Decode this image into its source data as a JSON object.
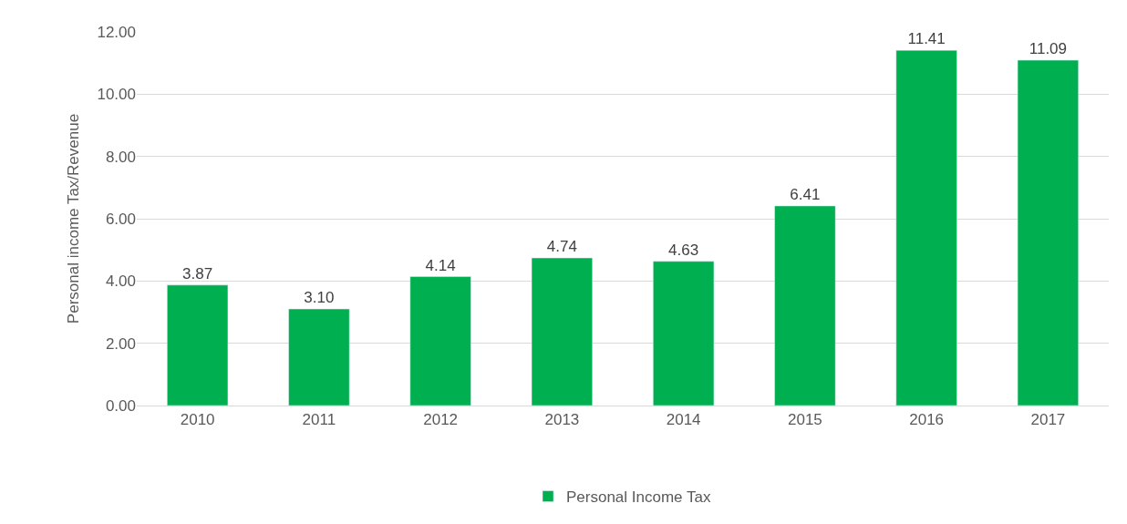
{
  "chart_data": {
    "type": "bar",
    "ylabel": "Personal income Tax/Revenue",
    "categories": [
      "2010",
      "2011",
      "2012",
      "2013",
      "2014",
      "2015",
      "2016",
      "2017"
    ],
    "series": [
      {
        "name": "Personal Income Tax",
        "color": "#00b050",
        "values": [
          3.87,
          3.1,
          4.14,
          4.74,
          4.63,
          6.41,
          11.41,
          11.09
        ],
        "value_labels": [
          "3.87",
          "3.10",
          "4.14",
          "4.74",
          "4.63",
          "6.41",
          "11.41",
          "11.09"
        ]
      }
    ],
    "ylim": [
      0,
      12
    ],
    "yticks": [
      {
        "value": 0,
        "label": "0.00"
      },
      {
        "value": 2,
        "label": "2.00"
      },
      {
        "value": 4,
        "label": "4.00"
      },
      {
        "value": 6,
        "label": "6.00"
      },
      {
        "value": 8,
        "label": "8.00"
      },
      {
        "value": 10,
        "label": "10.00"
      },
      {
        "value": 12,
        "label": "12.00"
      }
    ],
    "grid": "y",
    "legend": "bottom"
  }
}
